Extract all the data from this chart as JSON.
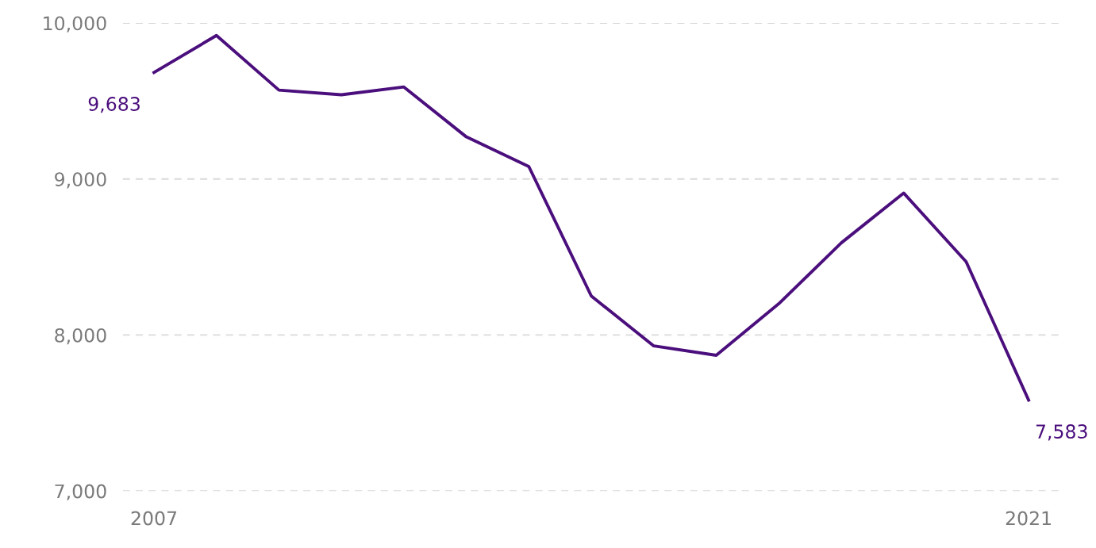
{
  "chart_data": {
    "type": "line",
    "x": [
      2007,
      2008,
      2009,
      2010,
      2011,
      2012,
      2013,
      2014,
      2015,
      2016,
      2017,
      2018,
      2019,
      2020,
      2021
    ],
    "series": [
      {
        "color": "#4b0f7d",
        "values": [
          9683,
          9920,
          9570,
          9540,
          9590,
          9270,
          9080,
          8250,
          7930,
          7870,
          8200,
          8590,
          8910,
          8470,
          7583
        ],
        "value_labels": [
          "9,683",
          null,
          null,
          null,
          null,
          null,
          null,
          null,
          null,
          null,
          null,
          null,
          null,
          null,
          "7,583"
        ]
      }
    ],
    "xlim": [
      2006.5,
      2021.5
    ],
    "xticks": [
      2007,
      2021
    ],
    "ylim": [
      7000,
      10000
    ],
    "yticks": [
      {
        "value": 7000,
        "label": "7,000"
      },
      {
        "value": 8000,
        "label": "8,000"
      },
      {
        "value": 9000,
        "label": "9,000"
      },
      {
        "value": 10000,
        "label": "10,000"
      }
    ],
    "grid": "y",
    "marker": "none",
    "line_style": "solid"
  }
}
